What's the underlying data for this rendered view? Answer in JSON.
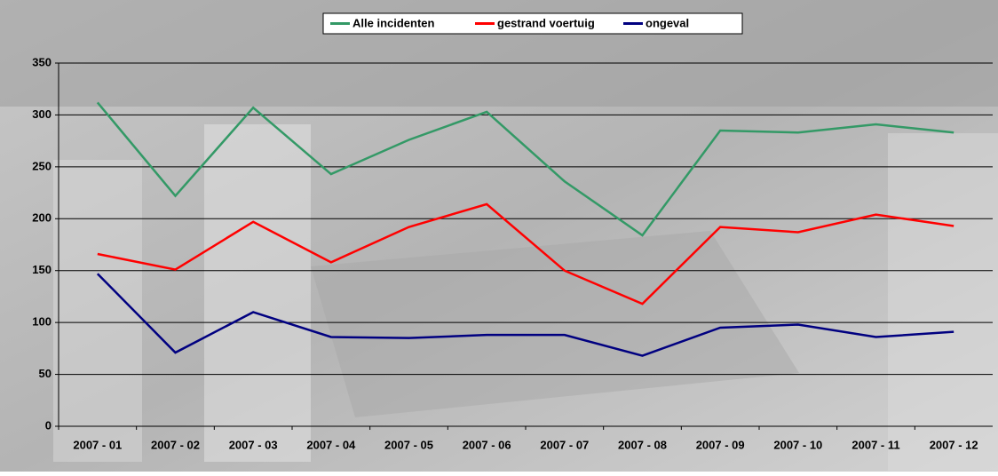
{
  "chart_data": {
    "type": "line",
    "categories": [
      "2007 - 01",
      "2007 - 02",
      "2007 - 03",
      "2007 - 04",
      "2007 - 05",
      "2007 - 06",
      "2007 - 07",
      "2007 - 08",
      "2007 - 09",
      "2007 - 10",
      "2007 - 11",
      "2007 - 12"
    ],
    "series": [
      {
        "name": "Alle incidenten",
        "color": "#339966",
        "values": [
          312,
          222,
          307,
          243,
          276,
          303,
          236,
          184,
          285,
          283,
          291,
          283
        ]
      },
      {
        "name": "gestrand voertuig",
        "color": "#ff0000",
        "values": [
          166,
          151,
          197,
          158,
          192,
          214,
          150,
          118,
          192,
          187,
          204,
          193
        ]
      },
      {
        "name": "ongeval",
        "color": "#000080",
        "values": [
          147,
          71,
          110,
          86,
          85,
          88,
          88,
          68,
          95,
          98,
          86,
          91
        ]
      }
    ],
    "ylim": [
      0,
      350
    ],
    "yticks": [
      0,
      50,
      100,
      150,
      200,
      250,
      300,
      350
    ],
    "grid": true,
    "legend": "top"
  }
}
